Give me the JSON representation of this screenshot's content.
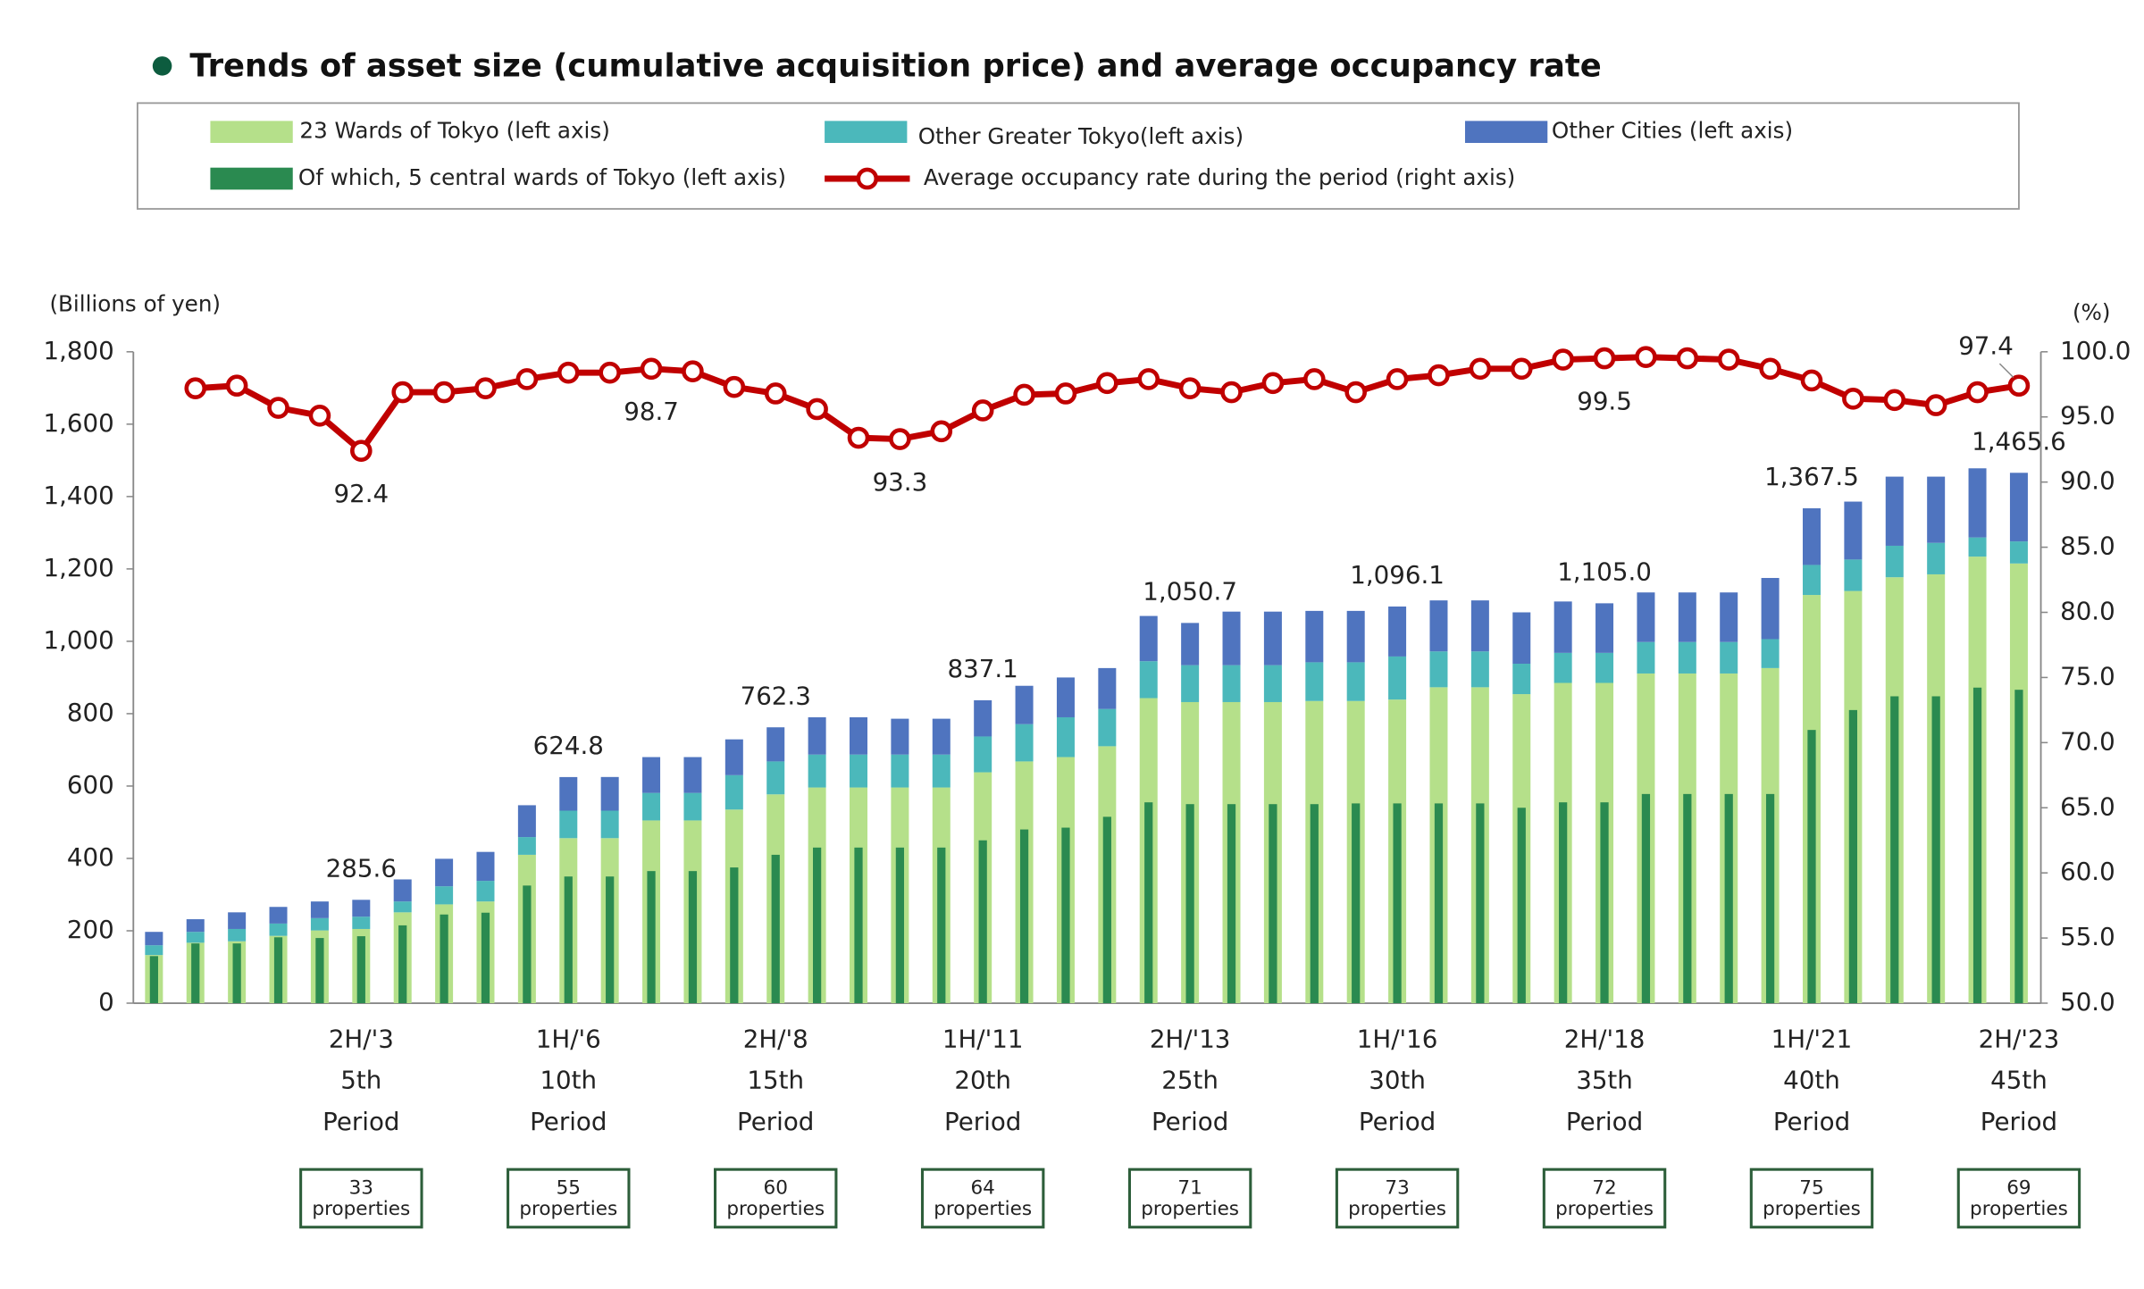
{
  "chart_data": {
    "type": "bar",
    "title": "Trends of asset size (cumulative acquisition price) and average occupancy rate",
    "y_label": "(Billions of yen)",
    "y2_label": "(%)",
    "categories": [
      null,
      null,
      null,
      null,
      null,
      [
        "2H/'3",
        "5th",
        "Period"
      ],
      null,
      null,
      null,
      null,
      [
        "1H/'6",
        "10th",
        "Period"
      ],
      null,
      null,
      null,
      null,
      [
        "2H/'8",
        "15th",
        "Period"
      ],
      null,
      null,
      null,
      null,
      [
        "1H/'11",
        "20th",
        "Period"
      ],
      null,
      null,
      null,
      null,
      [
        "2H/'13",
        "25th",
        "Period"
      ],
      null,
      null,
      null,
      null,
      [
        "1H/'16",
        "30th",
        "Period"
      ],
      null,
      null,
      null,
      null,
      [
        "2H/'18",
        "35th",
        "Period"
      ],
      null,
      null,
      null,
      null,
      [
        "1H/'21",
        "40th",
        "Period"
      ],
      null,
      null,
      null,
      null,
      [
        "2H/'23",
        "45th",
        "Period"
      ]
    ],
    "series": [
      {
        "name": "23 Wards of Tokyo (left axis)",
        "color": "#b5e08a",
        "stack": true,
        "values": [
          133,
          167,
          171,
          186,
          201,
          205,
          251,
          273,
          281,
          410,
          456,
          456,
          505,
          505,
          535,
          577,
          596,
          596,
          596,
          596,
          638,
          668,
          680,
          710,
          843,
          832,
          832,
          832,
          835,
          835,
          839,
          873,
          873,
          854,
          885,
          885,
          911,
          911,
          911,
          926,
          1128,
          1139,
          1177,
          1185,
          1234,
          1215
        ]
      },
      {
        "name": "Other Greater Tokyo(left axis)",
        "color": "#4bb8bb",
        "stack": true,
        "values": [
          27,
          30,
          34,
          34,
          34,
          34,
          30,
          50,
          57,
          49,
          76,
          76,
          76,
          76,
          95,
          91,
          91,
          91,
          91,
          91,
          99,
          103,
          110,
          103,
          102,
          102,
          102,
          102,
          107,
          107,
          119,
          99,
          99,
          84,
          83,
          83,
          87,
          87,
          87,
          80,
          83,
          87,
          87,
          87,
          53,
          61
        ]
      },
      {
        "name": "Other Cities (left axis)",
        "color": "#4f74bf",
        "stack": true,
        "values": [
          37,
          35,
          46,
          46,
          46,
          46.6,
          61,
          76,
          80,
          88,
          92.8,
          93,
          99,
          99,
          99,
          94.3,
          103,
          103,
          99,
          99,
          100.1,
          106,
          110,
          113,
          125,
          116.7,
          148,
          148,
          142,
          142,
          138.1,
          141,
          141,
          142,
          142,
          137,
          137,
          137,
          137,
          169,
          156.5,
          160,
          191,
          183,
          191,
          189.6
        ]
      },
      {
        "name": "Of which, 5 central wards of Tokyo (left axis)",
        "color": "#2a8a50",
        "stack": false,
        "values": [
          130,
          165,
          165,
          182,
          180,
          185,
          215,
          245,
          250,
          325,
          350,
          350,
          365,
          365,
          375,
          410,
          430,
          430,
          430,
          430,
          450,
          480,
          485,
          515,
          555,
          550,
          550,
          550,
          550,
          552,
          552,
          552,
          552,
          540,
          555,
          555,
          578,
          578,
          578,
          578,
          755,
          810,
          848,
          848,
          872,
          866
        ]
      },
      {
        "name": "Average occupancy rate during the period (right axis)",
        "color": "#c00000",
        "type": "line",
        "axis": "y2",
        "values": [
          null,
          97.2,
          97.4,
          95.7,
          95.1,
          92.4,
          96.9,
          96.9,
          97.2,
          97.9,
          98.4,
          98.4,
          98.7,
          98.5,
          97.3,
          96.8,
          95.6,
          93.4,
          93.3,
          93.9,
          95.5,
          96.7,
          96.8,
          97.6,
          97.9,
          97.2,
          96.9,
          97.6,
          97.9,
          96.9,
          97.9,
          98.2,
          98.7,
          98.7,
          99.4,
          99.5,
          99.6,
          99.5,
          99.4,
          98.7,
          97.8,
          96.4,
          96.3,
          95.9,
          96.9,
          97.4
        ],
        "value_labels": [
          null,
          null,
          null,
          null,
          null,
          "92.4",
          null,
          null,
          null,
          null,
          null,
          null,
          "98.7",
          null,
          null,
          null,
          null,
          null,
          "93.3",
          null,
          null,
          null,
          null,
          null,
          null,
          null,
          null,
          null,
          null,
          null,
          null,
          null,
          null,
          null,
          null,
          "99.5",
          null,
          null,
          null,
          null,
          null,
          null,
          null,
          null,
          null,
          "97.4"
        ]
      }
    ],
    "total_labels": [
      null,
      null,
      null,
      null,
      null,
      "285.6",
      null,
      null,
      null,
      null,
      "624.8",
      null,
      null,
      null,
      null,
      "762.3",
      null,
      null,
      null,
      null,
      "837.1",
      null,
      null,
      null,
      null,
      "1,050.7",
      null,
      null,
      null,
      null,
      "1,096.1",
      null,
      null,
      null,
      null,
      "1,105.0",
      null,
      null,
      null,
      null,
      "1,367.5",
      null,
      null,
      null,
      null,
      "1,465.6"
    ],
    "property_counts": [
      null,
      null,
      null,
      null,
      null,
      33,
      null,
      null,
      null,
      null,
      55,
      null,
      null,
      null,
      null,
      60,
      null,
      null,
      null,
      null,
      64,
      null,
      null,
      null,
      null,
      71,
      null,
      null,
      null,
      null,
      73,
      null,
      null,
      null,
      null,
      72,
      null,
      null,
      null,
      null,
      75,
      null,
      null,
      null,
      null,
      69
    ],
    "property_unit": "properties",
    "ylim": [
      0,
      1800
    ],
    "yticks": [
      0,
      200,
      400,
      600,
      800,
      {
        "value": 1000,
        "label": "1,000"
      },
      {
        "value": 1200,
        "label": "1,200"
      },
      {
        "value": 1400,
        "label": "1,400"
      },
      {
        "value": 1600,
        "label": "1,600"
      },
      {
        "value": 1800,
        "label": "1,800"
      }
    ],
    "y2lim": [
      50,
      100
    ],
    "y2ticks": [
      {
        "value": 50,
        "label": "50.0"
      },
      {
        "value": 55,
        "label": "55.0"
      },
      {
        "value": 60,
        "label": "60.0"
      },
      {
        "value": 65,
        "label": "65.0"
      },
      {
        "value": 70,
        "label": "70.0"
      },
      {
        "value": 75,
        "label": "75.0"
      },
      {
        "value": 80,
        "label": "80.0"
      },
      {
        "value": 85,
        "label": "85.0"
      },
      {
        "value": 90,
        "label": "90.0"
      },
      {
        "value": 95,
        "label": "95.0"
      },
      {
        "value": 100,
        "label": "100.0"
      }
    ],
    "grid": false
  }
}
